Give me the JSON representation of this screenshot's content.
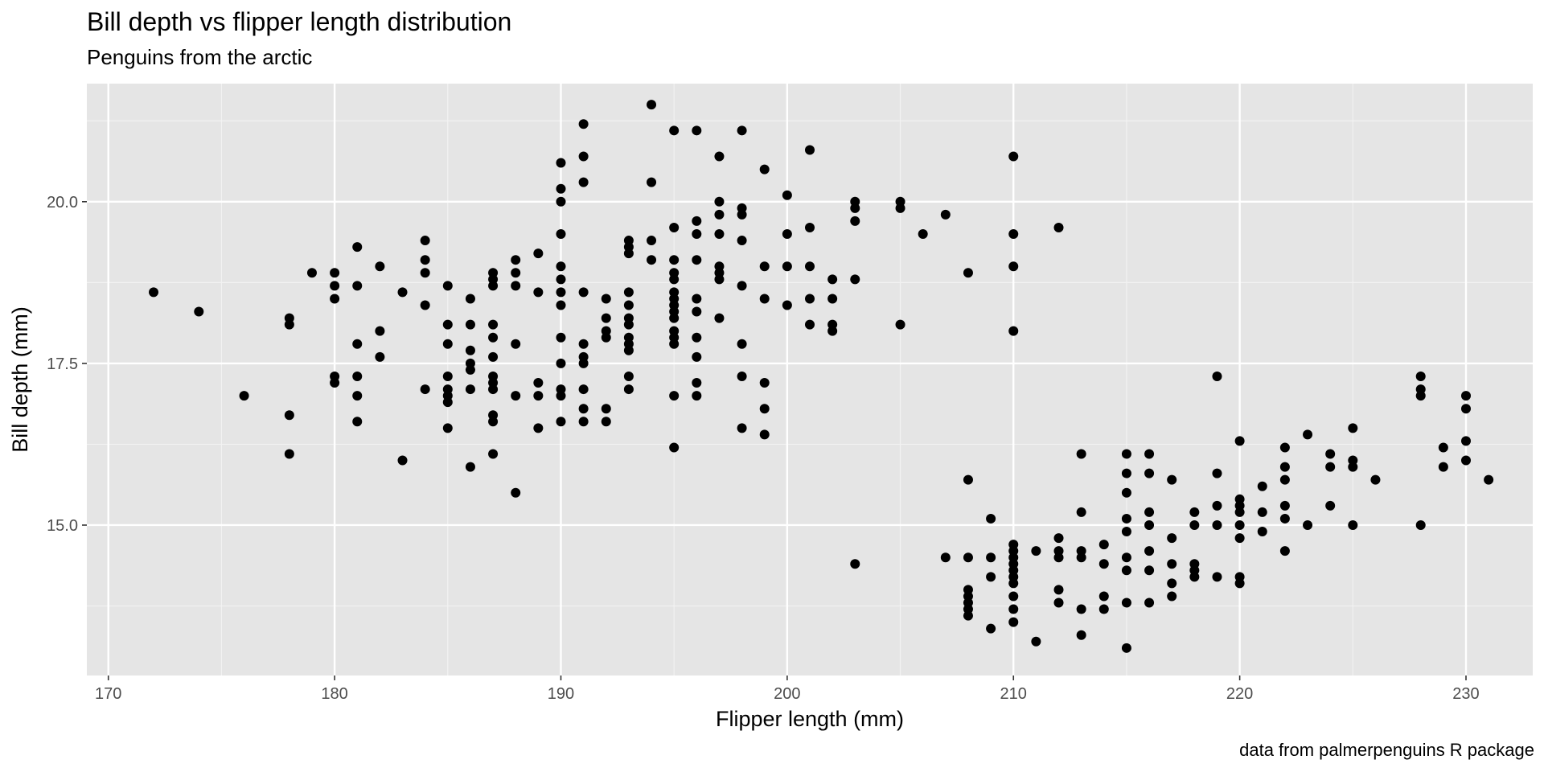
{
  "chart_data": {
    "type": "scatter",
    "title": "Bill depth vs flipper length distribution",
    "subtitle": "Penguins from the arctic",
    "caption": "data from palmerpenguins R package",
    "xlabel": "Flipper length (mm)",
    "ylabel": "Bill depth (mm)",
    "xlim": [
      169.05,
      232.95
    ],
    "ylim": [
      12.675,
      21.825
    ],
    "x_ticks": [
      170,
      180,
      190,
      200,
      210,
      220,
      230
    ],
    "x_tick_labels": [
      "170",
      "180",
      "190",
      "200",
      "210",
      "220",
      "230"
    ],
    "y_ticks": [
      15.0,
      17.5,
      20.0
    ],
    "y_tick_labels": [
      "15.0",
      "17.5",
      "20.0"
    ],
    "grid": true,
    "colors": {
      "panel": "#e5e5e5",
      "grid_major": "#ffffff",
      "grid_minor": "#f2f2f2",
      "point": "#000000"
    },
    "points": [
      [
        172,
        18.6
      ],
      [
        174,
        18.3
      ],
      [
        176,
        17.0
      ],
      [
        178,
        18.2
      ],
      [
        178,
        18.1
      ],
      [
        178,
        16.7
      ],
      [
        178,
        16.1
      ],
      [
        179,
        18.9
      ],
      [
        180,
        18.9
      ],
      [
        180,
        18.7
      ],
      [
        180,
        18.5
      ],
      [
        180,
        17.3
      ],
      [
        180,
        17.2
      ],
      [
        181,
        19.3
      ],
      [
        181,
        18.7
      ],
      [
        181,
        17.8
      ],
      [
        181,
        17.3
      ],
      [
        181,
        17.0
      ],
      [
        181,
        16.6
      ],
      [
        182,
        19.0
      ],
      [
        182,
        18.0
      ],
      [
        182,
        17.6
      ],
      [
        183,
        18.6
      ],
      [
        183,
        16.0
      ],
      [
        184,
        19.4
      ],
      [
        184,
        19.1
      ],
      [
        184,
        18.9
      ],
      [
        184,
        18.4
      ],
      [
        184,
        17.1
      ],
      [
        185,
        18.7
      ],
      [
        185,
        18.1
      ],
      [
        185,
        17.8
      ],
      [
        185,
        17.3
      ],
      [
        185,
        17.1
      ],
      [
        185,
        17.0
      ],
      [
        185,
        16.9
      ],
      [
        185,
        16.5
      ],
      [
        186,
        18.5
      ],
      [
        186,
        18.1
      ],
      [
        186,
        17.7
      ],
      [
        186,
        17.5
      ],
      [
        186,
        17.4
      ],
      [
        186,
        17.1
      ],
      [
        186,
        15.9
      ],
      [
        187,
        18.9
      ],
      [
        187,
        18.8
      ],
      [
        187,
        18.7
      ],
      [
        187,
        18.1
      ],
      [
        187,
        17.9
      ],
      [
        187,
        17.6
      ],
      [
        187,
        17.3
      ],
      [
        187,
        17.2
      ],
      [
        187,
        17.1
      ],
      [
        187,
        16.7
      ],
      [
        187,
        16.6
      ],
      [
        187,
        16.1
      ],
      [
        188,
        19.1
      ],
      [
        188,
        18.9
      ],
      [
        188,
        18.7
      ],
      [
        188,
        17.8
      ],
      [
        188,
        17.0
      ],
      [
        188,
        15.5
      ],
      [
        189,
        19.2
      ],
      [
        189,
        18.6
      ],
      [
        189,
        17.2
      ],
      [
        189,
        17.0
      ],
      [
        189,
        16.5
      ],
      [
        190,
        20.6
      ],
      [
        190,
        20.2
      ],
      [
        190,
        20.0
      ],
      [
        190,
        19.5
      ],
      [
        190,
        19.0
      ],
      [
        190,
        18.8
      ],
      [
        190,
        18.6
      ],
      [
        190,
        18.4
      ],
      [
        190,
        17.9
      ],
      [
        190,
        17.5
      ],
      [
        190,
        17.1
      ],
      [
        190,
        17.0
      ],
      [
        190,
        16.6
      ],
      [
        191,
        21.2
      ],
      [
        191,
        20.7
      ],
      [
        191,
        20.3
      ],
      [
        191,
        18.6
      ],
      [
        191,
        17.8
      ],
      [
        191,
        17.6
      ],
      [
        191,
        17.5
      ],
      [
        191,
        17.1
      ],
      [
        191,
        16.8
      ],
      [
        191,
        16.6
      ],
      [
        192,
        18.5
      ],
      [
        192,
        18.2
      ],
      [
        192,
        18.0
      ],
      [
        192,
        17.9
      ],
      [
        192,
        16.8
      ],
      [
        192,
        16.6
      ],
      [
        193,
        19.4
      ],
      [
        193,
        19.3
      ],
      [
        193,
        19.2
      ],
      [
        193,
        18.6
      ],
      [
        193,
        18.4
      ],
      [
        193,
        18.2
      ],
      [
        193,
        18.1
      ],
      [
        193,
        17.9
      ],
      [
        193,
        17.8
      ],
      [
        193,
        17.7
      ],
      [
        193,
        17.3
      ],
      [
        193,
        17.1
      ],
      [
        194,
        21.5
      ],
      [
        194,
        20.3
      ],
      [
        194,
        19.4
      ],
      [
        194,
        19.1
      ],
      [
        195,
        21.1
      ],
      [
        195,
        19.6
      ],
      [
        195,
        19.1
      ],
      [
        195,
        18.9
      ],
      [
        195,
        18.8
      ],
      [
        195,
        18.6
      ],
      [
        195,
        18.5
      ],
      [
        195,
        18.4
      ],
      [
        195,
        18.3
      ],
      [
        195,
        18.2
      ],
      [
        195,
        18.0
      ],
      [
        195,
        17.9
      ],
      [
        195,
        17.8
      ],
      [
        195,
        17.0
      ],
      [
        195,
        16.2
      ],
      [
        196,
        21.1
      ],
      [
        196,
        19.7
      ],
      [
        196,
        19.5
      ],
      [
        196,
        19.1
      ],
      [
        196,
        18.5
      ],
      [
        196,
        18.3
      ],
      [
        196,
        17.9
      ],
      [
        196,
        17.6
      ],
      [
        196,
        17.2
      ],
      [
        196,
        17.0
      ],
      [
        197,
        20.7
      ],
      [
        197,
        20.0
      ],
      [
        197,
        19.8
      ],
      [
        197,
        19.5
      ],
      [
        197,
        19.0
      ],
      [
        197,
        18.9
      ],
      [
        197,
        18.8
      ],
      [
        197,
        18.2
      ],
      [
        198,
        21.1
      ],
      [
        198,
        19.9
      ],
      [
        198,
        19.8
      ],
      [
        198,
        19.4
      ],
      [
        198,
        18.7
      ],
      [
        198,
        17.8
      ],
      [
        198,
        17.3
      ],
      [
        198,
        16.5
      ],
      [
        199,
        20.5
      ],
      [
        199,
        19.0
      ],
      [
        199,
        18.5
      ],
      [
        199,
        17.2
      ],
      [
        199,
        16.8
      ],
      [
        199,
        16.4
      ],
      [
        200,
        20.1
      ],
      [
        200,
        19.5
      ],
      [
        200,
        19.0
      ],
      [
        200,
        18.4
      ],
      [
        201,
        20.8
      ],
      [
        201,
        19.6
      ],
      [
        201,
        19.0
      ],
      [
        201,
        18.5
      ],
      [
        201,
        18.1
      ],
      [
        202,
        18.8
      ],
      [
        202,
        18.5
      ],
      [
        202,
        18.1
      ],
      [
        202,
        18.0
      ],
      [
        203,
        20.0
      ],
      [
        203,
        19.9
      ],
      [
        203,
        19.7
      ],
      [
        203,
        18.8
      ],
      [
        203,
        14.4
      ],
      [
        205,
        20.0
      ],
      [
        205,
        19.9
      ],
      [
        205,
        18.1
      ],
      [
        206,
        19.5
      ],
      [
        207,
        19.8
      ],
      [
        207,
        14.5
      ],
      [
        208,
        18.9
      ],
      [
        208,
        15.7
      ],
      [
        208,
        14.5
      ],
      [
        208,
        14.0
      ],
      [
        208,
        13.9
      ],
      [
        208,
        13.8
      ],
      [
        208,
        13.7
      ],
      [
        208,
        13.6
      ],
      [
        209,
        15.1
      ],
      [
        209,
        14.5
      ],
      [
        209,
        14.2
      ],
      [
        209,
        13.4
      ],
      [
        210,
        20.7
      ],
      [
        210,
        19.5
      ],
      [
        210,
        19.0
      ],
      [
        210,
        18.0
      ],
      [
        210,
        14.7
      ],
      [
        210,
        14.6
      ],
      [
        210,
        14.5
      ],
      [
        210,
        14.4
      ],
      [
        210,
        14.3
      ],
      [
        210,
        14.2
      ],
      [
        210,
        14.1
      ],
      [
        210,
        13.9
      ],
      [
        210,
        13.7
      ],
      [
        210,
        13.5
      ],
      [
        211,
        14.6
      ],
      [
        211,
        13.2
      ],
      [
        212,
        19.6
      ],
      [
        212,
        14.8
      ],
      [
        212,
        14.6
      ],
      [
        212,
        14.5
      ],
      [
        212,
        14.0
      ],
      [
        212,
        13.8
      ],
      [
        213,
        16.1
      ],
      [
        213,
        15.2
      ],
      [
        213,
        14.6
      ],
      [
        213,
        14.5
      ],
      [
        213,
        13.7
      ],
      [
        213,
        13.3
      ],
      [
        214,
        14.7
      ],
      [
        214,
        14.4
      ],
      [
        214,
        13.9
      ],
      [
        214,
        13.7
      ],
      [
        215,
        16.1
      ],
      [
        215,
        15.8
      ],
      [
        215,
        15.5
      ],
      [
        215,
        15.1
      ],
      [
        215,
        14.9
      ],
      [
        215,
        14.5
      ],
      [
        215,
        14.3
      ],
      [
        215,
        13.8
      ],
      [
        215,
        13.1
      ],
      [
        216,
        16.1
      ],
      [
        216,
        15.8
      ],
      [
        216,
        15.2
      ],
      [
        216,
        15.0
      ],
      [
        216,
        14.6
      ],
      [
        216,
        14.3
      ],
      [
        216,
        13.8
      ],
      [
        217,
        15.7
      ],
      [
        217,
        14.8
      ],
      [
        217,
        14.4
      ],
      [
        217,
        14.1
      ],
      [
        217,
        13.9
      ],
      [
        218,
        15.2
      ],
      [
        218,
        15.0
      ],
      [
        218,
        14.4
      ],
      [
        218,
        14.3
      ],
      [
        218,
        14.2
      ],
      [
        219,
        17.3
      ],
      [
        219,
        15.8
      ],
      [
        219,
        15.3
      ],
      [
        219,
        15.0
      ],
      [
        219,
        14.2
      ],
      [
        220,
        16.3
      ],
      [
        220,
        15.4
      ],
      [
        220,
        15.3
      ],
      [
        220,
        15.2
      ],
      [
        220,
        15.0
      ],
      [
        220,
        14.8
      ],
      [
        220,
        14.2
      ],
      [
        220,
        14.1
      ],
      [
        221,
        15.6
      ],
      [
        221,
        15.2
      ],
      [
        221,
        14.9
      ],
      [
        222,
        16.2
      ],
      [
        222,
        15.9
      ],
      [
        222,
        15.7
      ],
      [
        222,
        15.3
      ],
      [
        222,
        15.1
      ],
      [
        222,
        14.6
      ],
      [
        223,
        16.4
      ],
      [
        223,
        15.0
      ],
      [
        224,
        16.1
      ],
      [
        224,
        15.9
      ],
      [
        224,
        15.3
      ],
      [
        225,
        16.5
      ],
      [
        225,
        16.0
      ],
      [
        225,
        15.9
      ],
      [
        225,
        15.0
      ],
      [
        226,
        15.7
      ],
      [
        228,
        17.3
      ],
      [
        228,
        17.1
      ],
      [
        228,
        17.0
      ],
      [
        228,
        15.0
      ],
      [
        229,
        16.2
      ],
      [
        229,
        15.9
      ],
      [
        230,
        17.0
      ],
      [
        230,
        16.8
      ],
      [
        230,
        16.3
      ],
      [
        230,
        16.0
      ],
      [
        231,
        15.7
      ]
    ]
  }
}
